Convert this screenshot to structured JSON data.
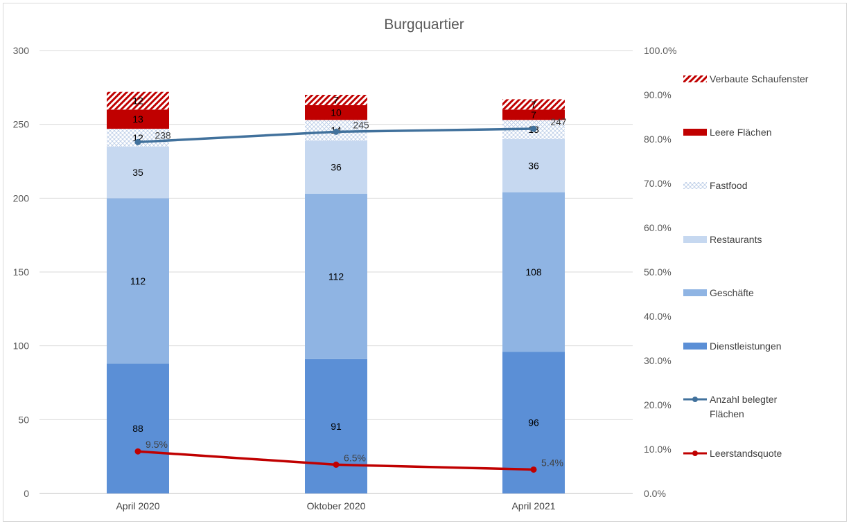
{
  "chart_data": {
    "type": "bar",
    "stacked": true,
    "title": "Burgquartier",
    "categories": [
      "April 2020",
      "Oktober 2020",
      "April 2021"
    ],
    "y_left": {
      "min": 0,
      "max": 300,
      "ticks": [
        "0",
        "50",
        "100",
        "150",
        "200",
        "250",
        "300"
      ]
    },
    "y_right": {
      "min": 0,
      "max": 100,
      "ticks": [
        "0.0%",
        "10.0%",
        "20.0%",
        "30.0%",
        "40.0%",
        "50.0%",
        "60.0%",
        "70.0%",
        "80.0%",
        "90.0%",
        "100.0%"
      ]
    },
    "grid": true,
    "legend_position": "right",
    "series": [
      {
        "name": "Dienstleistungen",
        "kind": "bar",
        "color": "#5b8fd6",
        "values": [
          88,
          91,
          96
        ],
        "labels": [
          "88",
          "91",
          "96"
        ]
      },
      {
        "name": "Geschäfte",
        "kind": "bar",
        "color": "#8fb4e3",
        "values": [
          112,
          112,
          108
        ],
        "labels": [
          "112",
          "112",
          "108"
        ]
      },
      {
        "name": "Restaurants",
        "kind": "bar",
        "color": "#c6d8f0",
        "values": [
          35,
          36,
          36
        ],
        "labels": [
          "35",
          "36",
          "36"
        ]
      },
      {
        "name": "Fastfood",
        "kind": "bar",
        "pattern": "crosshatch",
        "color": "#c6d8f0",
        "values": [
          12,
          14,
          13
        ],
        "labels": [
          "12",
          "14",
          "13"
        ]
      },
      {
        "name": "Leere Flächen",
        "kind": "bar",
        "color": "#c00000",
        "values": [
          13,
          10,
          7
        ],
        "labels": [
          "13",
          "10",
          "7"
        ]
      },
      {
        "name": "Verbaute Schaufenster",
        "kind": "bar",
        "pattern": "diagonal",
        "color": "#c00000",
        "values": [
          12,
          7,
          7
        ],
        "labels": [
          "12",
          "7",
          "7"
        ]
      }
    ],
    "lines": [
      {
        "name": "Anzahl belegter Flächen",
        "axis": "left",
        "color": "#41719c",
        "values": [
          238,
          245,
          247
        ],
        "labels": [
          "238",
          "245",
          "247"
        ]
      },
      {
        "name": "Leerstandsquote",
        "axis": "right",
        "color": "#c00000",
        "values": [
          9.5,
          6.5,
          5.4
        ],
        "labels": [
          "9.5%",
          "6.5%",
          "5.4%"
        ]
      }
    ],
    "legend": [
      {
        "name": "Verbaute Schaufenster",
        "swatch": "diagonal",
        "color": "#c00000"
      },
      {
        "name": "Leere Flächen",
        "swatch": "solid",
        "color": "#c00000"
      },
      {
        "name": "Fastfood",
        "swatch": "crosshatch",
        "color": "#c6d8f0"
      },
      {
        "name": "Restaurants",
        "swatch": "solid",
        "color": "#c6d8f0"
      },
      {
        "name": "Geschäfte",
        "swatch": "solid",
        "color": "#8fb4e3"
      },
      {
        "name": "Dienstleistungen",
        "swatch": "solid",
        "color": "#5b8fd6"
      },
      {
        "name": [
          "Anzahl belegter",
          "Flächen"
        ],
        "swatch": "line",
        "color": "#41719c"
      },
      {
        "name": "Leerstandsquote",
        "swatch": "line",
        "color": "#c00000"
      }
    ]
  }
}
